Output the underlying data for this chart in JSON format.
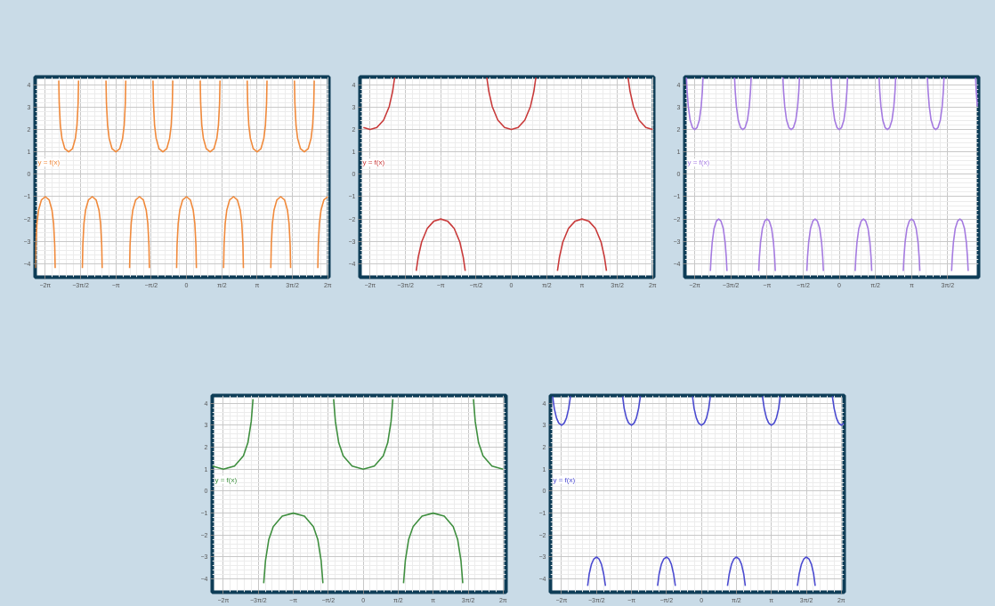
{
  "chart_data": [
    {
      "type": "line",
      "xlim": [
        -6.73,
        6.33
      ],
      "ylim": [
        -4.6,
        4.35
      ],
      "grid": true,
      "xticks": [
        {
          "value": -6.283,
          "label": "−2π"
        },
        {
          "value": -4.712,
          "label": "−3π/2"
        },
        {
          "value": -3.142,
          "label": "−π"
        },
        {
          "value": -1.571,
          "label": "−π/2"
        },
        {
          "value": 0,
          "label": "0"
        },
        {
          "value": 1.571,
          "label": "π/2"
        },
        {
          "value": 3.142,
          "label": "π"
        },
        {
          "value": 4.712,
          "label": "3π/2"
        },
        {
          "value": 6.283,
          "label": "2π"
        }
      ],
      "yticks": [
        -4,
        -3,
        -2,
        -1,
        0,
        1,
        2,
        3,
        4
      ],
      "annotations": [
        "y = f(x)"
      ],
      "series": [
        {
          "color": "#f08a3c",
          "x": [
            -6.72,
            -6.7,
            -6.65,
            -6.58,
            -6.45,
            -6.28,
            -6.11,
            -5.98,
            -5.91,
            -5.86,
            -5.84
          ],
          "values": [
            -4.19,
            -3.17,
            -2.2,
            -1.61,
            -1.14,
            -1,
            -1.14,
            -1.61,
            -2.2,
            -3.17,
            -4.19
          ]
        },
        {
          "color": "#f08a3c",
          "x": [
            -5.68,
            -5.66,
            -5.61,
            -5.54,
            -5.41,
            -5.24,
            -5.07,
            -4.94,
            -4.87,
            -4.82,
            -4.8
          ],
          "values": [
            4.19,
            3.17,
            2.2,
            1.61,
            1.14,
            1,
            1.14,
            1.61,
            2.2,
            3.17,
            4.19
          ]
        },
        {
          "color": "#f08a3c",
          "x": [
            -4.63,
            -4.61,
            -4.56,
            -4.49,
            -4.36,
            -4.19,
            -4.02,
            -3.89,
            -3.82,
            -3.77,
            -3.75
          ],
          "values": [
            -4.19,
            -3.17,
            -2.2,
            -1.61,
            -1.14,
            -1,
            -1.14,
            -1.61,
            -2.2,
            -3.17,
            -4.19
          ]
        },
        {
          "color": "#f08a3c",
          "x": [
            -3.58,
            -3.56,
            -3.51,
            -3.44,
            -3.31,
            -3.14,
            -2.97,
            -2.84,
            -2.77,
            -2.72,
            -2.7
          ],
          "values": [
            4.19,
            3.17,
            2.2,
            1.61,
            1.14,
            1,
            1.14,
            1.61,
            2.2,
            3.17,
            4.19
          ]
        },
        {
          "color": "#f08a3c",
          "x": [
            -2.53,
            -2.51,
            -2.46,
            -2.39,
            -2.26,
            -2.09,
            -1.92,
            -1.79,
            -1.72,
            -1.67,
            -1.65
          ],
          "values": [
            -4.19,
            -3.17,
            -2.2,
            -1.61,
            -1.14,
            -1,
            -1.14,
            -1.61,
            -2.2,
            -3.17,
            -4.19
          ]
        },
        {
          "color": "#f08a3c",
          "x": [
            -1.49,
            -1.47,
            -1.42,
            -1.35,
            -1.22,
            -1.05,
            -0.88,
            -0.75,
            -0.68,
            -0.63,
            -0.61
          ],
          "values": [
            4.19,
            3.17,
            2.2,
            1.61,
            1.14,
            1,
            1.14,
            1.61,
            2.2,
            3.17,
            4.19
          ]
        },
        {
          "color": "#f08a3c",
          "x": [
            -0.44,
            -0.42,
            -0.37,
            -0.3,
            -0.17,
            0,
            0.17,
            0.3,
            0.37,
            0.42,
            0.44
          ],
          "values": [
            -4.19,
            -3.17,
            -2.2,
            -1.61,
            -1.14,
            -1,
            -1.14,
            -1.61,
            -2.2,
            -3.17,
            -4.19
          ]
        },
        {
          "color": "#f08a3c",
          "x": [
            0.61,
            0.63,
            0.68,
            0.75,
            0.88,
            1.05,
            1.22,
            1.35,
            1.42,
            1.47,
            1.49
          ],
          "values": [
            4.19,
            3.17,
            2.2,
            1.61,
            1.14,
            1,
            1.14,
            1.61,
            2.2,
            3.17,
            4.19
          ]
        },
        {
          "color": "#f08a3c",
          "x": [
            1.65,
            1.67,
            1.72,
            1.79,
            1.92,
            2.09,
            2.26,
            2.39,
            2.46,
            2.51,
            2.53
          ],
          "values": [
            -4.19,
            -3.17,
            -2.2,
            -1.61,
            -1.14,
            -1,
            -1.14,
            -1.61,
            -2.2,
            -3.17,
            -4.19
          ]
        },
        {
          "color": "#f08a3c",
          "x": [
            2.7,
            2.72,
            2.77,
            2.84,
            2.97,
            3.14,
            3.31,
            3.44,
            3.51,
            3.56,
            3.58
          ],
          "values": [
            4.19,
            3.17,
            2.2,
            1.61,
            1.14,
            1,
            1.14,
            1.61,
            2.2,
            3.17,
            4.19
          ]
        },
        {
          "color": "#f08a3c",
          "x": [
            3.75,
            3.77,
            3.82,
            3.89,
            4.02,
            4.19,
            4.36,
            4.49,
            4.56,
            4.61,
            4.63
          ],
          "values": [
            -4.19,
            -3.17,
            -2.2,
            -1.61,
            -1.14,
            -1,
            -1.14,
            -1.61,
            -2.2,
            -3.17,
            -4.19
          ]
        },
        {
          "color": "#f08a3c",
          "x": [
            4.8,
            4.82,
            4.87,
            4.94,
            5.07,
            5.24,
            5.41,
            5.54,
            5.61,
            5.66,
            5.68
          ],
          "values": [
            4.19,
            3.17,
            2.2,
            1.61,
            1.14,
            1,
            1.14,
            1.61,
            2.2,
            3.17,
            4.19
          ]
        },
        {
          "color": "#f08a3c",
          "x": [
            5.84,
            5.86,
            5.91,
            5.98,
            6.11,
            6.28
          ],
          "values": [
            -4.19,
            -3.17,
            -2.2,
            -1.61,
            -1.14,
            -1
          ]
        }
      ]
    },
    {
      "type": "line",
      "xlim": [
        -6.73,
        6.33
      ],
      "ylim": [
        -4.6,
        4.35
      ],
      "grid": true,
      "xticks": [
        {
          "value": -6.283,
          "label": "−2π"
        },
        {
          "value": -4.712,
          "label": "−3π/2"
        },
        {
          "value": -3.142,
          "label": "−π"
        },
        {
          "value": -1.571,
          "label": "−π/2"
        },
        {
          "value": 0,
          "label": "0"
        },
        {
          "value": 1.571,
          "label": "π/2"
        },
        {
          "value": 3.142,
          "label": "π"
        },
        {
          "value": 4.712,
          "label": "3π/2"
        },
        {
          "value": 6.283,
          "label": "2π"
        }
      ],
      "yticks": [
        -4,
        -3,
        -2,
        -1,
        0,
        1,
        2,
        3,
        4
      ],
      "annotations": [
        "y = f(x)"
      ],
      "series": [
        {
          "color": "#c83a3a",
          "x": [
            -6.58,
            -6.28,
            -5.98,
            -5.68,
            -5.43,
            -5.28,
            -5.19
          ],
          "values": [
            2.09,
            2,
            2.09,
            2.42,
            3.03,
            3.7,
            4.32
          ]
        },
        {
          "color": "#c83a3a",
          "x": [
            -4.23,
            -4.14,
            -3.99,
            -3.74,
            -3.44,
            -3.14,
            -2.84,
            -2.54,
            -2.29,
            -2.14,
            -2.05
          ],
          "values": [
            -4.32,
            -3.7,
            -3.03,
            -2.42,
            -2.09,
            -2,
            -2.09,
            -2.42,
            -3.03,
            -3.7,
            -4.32
          ]
        },
        {
          "color": "#c83a3a",
          "x": [
            -1.09,
            -1,
            -0.85,
            -0.6,
            -0.3,
            0,
            0.3,
            0.6,
            0.85,
            1,
            1.09
          ],
          "values": [
            4.32,
            3.7,
            3.03,
            2.42,
            2.09,
            2,
            2.09,
            2.42,
            3.03,
            3.7,
            4.32
          ]
        },
        {
          "color": "#c83a3a",
          "x": [
            2.05,
            2.14,
            2.29,
            2.54,
            2.84,
            3.14,
            3.44,
            3.74,
            3.99,
            4.14,
            4.23
          ],
          "values": [
            -4.32,
            -3.7,
            -3.03,
            -2.42,
            -2.09,
            -2,
            -2.09,
            -2.42,
            -3.03,
            -3.7,
            -4.32
          ]
        },
        {
          "color": "#c83a3a",
          "x": [
            5.19,
            5.28,
            5.43,
            5.68,
            5.98,
            6.28
          ],
          "values": [
            4.32,
            3.7,
            3.03,
            2.42,
            2.09,
            2
          ]
        }
      ]
    },
    {
      "type": "line",
      "xlim": [
        -6.71,
        6.05
      ],
      "ylim": [
        -4.6,
        4.35
      ],
      "grid": true,
      "xticks": [
        {
          "value": -6.283,
          "label": "−2π"
        },
        {
          "value": -4.712,
          "label": "−3π/2"
        },
        {
          "value": -3.142,
          "label": "−π"
        },
        {
          "value": -1.571,
          "label": "−π/2"
        },
        {
          "value": 0,
          "label": "0"
        },
        {
          "value": 1.571,
          "label": "π/2"
        },
        {
          "value": 3.142,
          "label": "π"
        },
        {
          "value": 4.712,
          "label": "3π/2"
        }
      ],
      "yticks": [
        -4,
        -3,
        -2,
        -1,
        0,
        1,
        2,
        3,
        4
      ],
      "annotations": [
        "y = f(x)"
      ],
      "series": [
        {
          "color": "#a57be0",
          "x": [
            -6.64,
            -6.61,
            -6.56,
            -6.48,
            -6.38,
            -6.28,
            -6.18,
            -6.08,
            -6.0,
            -5.95,
            -5.92
          ],
          "values": [
            4.32,
            3.7,
            3.03,
            2.42,
            2.09,
            2,
            2.09,
            2.42,
            3.03,
            3.7,
            4.32
          ]
        },
        {
          "color": "#a57be0",
          "x": [
            -5.6,
            -5.57,
            -5.52,
            -5.44,
            -5.34,
            -5.24,
            -5.14,
            -5.04,
            -4.96,
            -4.91,
            -4.88
          ],
          "values": [
            -4.32,
            -3.7,
            -3.03,
            -2.42,
            -2.09,
            -2,
            -2.09,
            -2.42,
            -3.03,
            -3.7,
            -4.32
          ]
        },
        {
          "color": "#a57be0",
          "x": [
            -4.55,
            -4.52,
            -4.47,
            -4.39,
            -4.29,
            -4.19,
            -4.09,
            -3.99,
            -3.91,
            -3.86,
            -3.83
          ],
          "values": [
            4.32,
            3.7,
            3.03,
            2.42,
            2.09,
            2,
            2.09,
            2.42,
            3.03,
            3.7,
            4.32
          ]
        },
        {
          "color": "#a57be0",
          "x": [
            -3.5,
            -3.47,
            -3.42,
            -3.34,
            -3.24,
            -3.14,
            -3.04,
            -2.94,
            -2.86,
            -2.81,
            -2.78
          ],
          "values": [
            -4.32,
            -3.7,
            -3.03,
            -2.42,
            -2.09,
            -2,
            -2.09,
            -2.42,
            -3.03,
            -3.7,
            -4.32
          ]
        },
        {
          "color": "#a57be0",
          "x": [
            -2.45,
            -2.42,
            -2.37,
            -2.29,
            -2.19,
            -2.09,
            -1.99,
            -1.89,
            -1.81,
            -1.76,
            -1.73
          ],
          "values": [
            4.32,
            3.7,
            3.03,
            2.42,
            2.09,
            2,
            2.09,
            2.42,
            3.03,
            3.7,
            4.32
          ]
        },
        {
          "color": "#a57be0",
          "x": [
            -1.41,
            -1.38,
            -1.33,
            -1.25,
            -1.15,
            -1.05,
            -0.95,
            -0.85,
            -0.77,
            -0.72,
            -0.69
          ],
          "values": [
            -4.32,
            -3.7,
            -3.03,
            -2.42,
            -2.09,
            -2,
            -2.09,
            -2.42,
            -3.03,
            -3.7,
            -4.32
          ]
        },
        {
          "color": "#a57be0",
          "x": [
            -0.36,
            -0.33,
            -0.28,
            -0.2,
            -0.1,
            0,
            0.1,
            0.2,
            0.28,
            0.33,
            0.36
          ],
          "values": [
            4.32,
            3.7,
            3.03,
            2.42,
            2.09,
            2,
            2.09,
            2.42,
            3.03,
            3.7,
            4.32
          ]
        },
        {
          "color": "#a57be0",
          "x": [
            0.69,
            0.72,
            0.77,
            0.85,
            0.95,
            1.05,
            1.15,
            1.25,
            1.33,
            1.38,
            1.41
          ],
          "values": [
            -4.32,
            -3.7,
            -3.03,
            -2.42,
            -2.09,
            -2,
            -2.09,
            -2.42,
            -3.03,
            -3.7,
            -4.32
          ]
        },
        {
          "color": "#a57be0",
          "x": [
            1.73,
            1.76,
            1.81,
            1.89,
            1.99,
            2.09,
            2.19,
            2.29,
            2.37,
            2.42,
            2.45
          ],
          "values": [
            4.32,
            3.7,
            3.03,
            2.42,
            2.09,
            2,
            2.09,
            2.42,
            3.03,
            3.7,
            4.32
          ]
        },
        {
          "color": "#a57be0",
          "x": [
            2.78,
            2.81,
            2.86,
            2.94,
            3.04,
            3.14,
            3.24,
            3.34,
            3.42,
            3.47,
            3.5
          ],
          "values": [
            -4.32,
            -3.7,
            -3.03,
            -2.42,
            -2.09,
            -2,
            -2.09,
            -2.42,
            -3.03,
            -3.7,
            -4.32
          ]
        },
        {
          "color": "#a57be0",
          "x": [
            3.83,
            3.86,
            3.91,
            3.99,
            4.09,
            4.19,
            4.29,
            4.39,
            4.47,
            4.52,
            4.55
          ],
          "values": [
            4.32,
            3.7,
            3.03,
            2.42,
            2.09,
            2,
            2.09,
            2.42,
            3.03,
            3.7,
            4.32
          ]
        },
        {
          "color": "#a57be0",
          "x": [
            4.88,
            4.91,
            4.96,
            5.04,
            5.14,
            5.24,
            5.34,
            5.44,
            5.52,
            5.57,
            5.6
          ],
          "values": [
            -4.32,
            -3.7,
            -3.03,
            -2.42,
            -2.09,
            -2,
            -2.09,
            -2.42,
            -3.03,
            -3.7,
            -4.32
          ]
        },
        {
          "color": "#a57be0",
          "x": [
            5.92,
            5.95,
            6.0
          ],
          "values": [
            4.32,
            3.7,
            3.03
          ]
        }
      ]
    },
    {
      "type": "line",
      "xlim": [
        -6.78,
        6.41
      ],
      "ylim": [
        -4.6,
        4.35
      ],
      "grid": true,
      "xticks": [
        {
          "value": -6.283,
          "label": "−2π"
        },
        {
          "value": -4.712,
          "label": "−3π/2"
        },
        {
          "value": -3.142,
          "label": "−π"
        },
        {
          "value": -1.571,
          "label": "−π/2"
        },
        {
          "value": 0,
          "label": "0"
        },
        {
          "value": 1.571,
          "label": "π/2"
        },
        {
          "value": 3.142,
          "label": "π"
        },
        {
          "value": 4.712,
          "label": "3π/2"
        },
        {
          "value": 6.283,
          "label": "2π"
        }
      ],
      "yticks": [
        -4,
        -3,
        -2,
        -1,
        0,
        1,
        2,
        3,
        4
      ],
      "annotations": [
        "y = f(x)"
      ],
      "series": [
        {
          "color": "#3f8f3f",
          "x": [
            -6.78,
            -6.28,
            -5.78,
            -5.38,
            -5.18,
            -5.03,
            -4.95
          ],
          "values": [
            1.14,
            1,
            1.14,
            1.61,
            2.2,
            3.17,
            4.19
          ]
        },
        {
          "color": "#3f8f3f",
          "x": [
            -4.47,
            -4.39,
            -4.24,
            -4.04,
            -3.64,
            -3.14,
            -2.64,
            -2.24,
            -2.04,
            -1.89,
            -1.81
          ],
          "values": [
            -4.19,
            -3.17,
            -2.2,
            -1.61,
            -1.14,
            -1,
            -1.14,
            -1.61,
            -2.2,
            -3.17,
            -4.19
          ]
        },
        {
          "color": "#3f8f3f",
          "x": [
            -1.33,
            -1.25,
            -1.1,
            -0.9,
            -0.5,
            0,
            0.5,
            0.9,
            1.1,
            1.25,
            1.33
          ],
          "values": [
            4.19,
            3.17,
            2.2,
            1.61,
            1.14,
            1,
            1.14,
            1.61,
            2.2,
            3.17,
            4.19
          ]
        },
        {
          "color": "#3f8f3f",
          "x": [
            1.81,
            1.89,
            2.04,
            2.24,
            2.64,
            3.14,
            3.64,
            4.04,
            4.24,
            4.39,
            4.47
          ],
          "values": [
            -4.19,
            -3.17,
            -2.2,
            -1.61,
            -1.14,
            -1,
            -1.14,
            -1.61,
            -2.2,
            -3.17,
            -4.19
          ]
        },
        {
          "color": "#3f8f3f",
          "x": [
            4.95,
            5.03,
            5.18,
            5.38,
            5.78,
            6.28
          ],
          "values": [
            4.19,
            3.17,
            2.2,
            1.61,
            1.14,
            1
          ]
        }
      ]
    },
    {
      "type": "line",
      "xlim": [
        -6.78,
        6.41
      ],
      "ylim": [
        -4.6,
        4.35
      ],
      "grid": true,
      "xticks": [
        {
          "value": -6.283,
          "label": "−2π"
        },
        {
          "value": -4.712,
          "label": "−3π/2"
        },
        {
          "value": -3.142,
          "label": "−π"
        },
        {
          "value": -1.571,
          "label": "−π/2"
        },
        {
          "value": 0,
          "label": "0"
        },
        {
          "value": 1.571,
          "label": "π/2"
        },
        {
          "value": 3.142,
          "label": "π"
        },
        {
          "value": 4.712,
          "label": "3π/2"
        },
        {
          "value": 6.283,
          "label": "2π"
        }
      ],
      "yticks": [
        -4,
        -3,
        -2,
        -1,
        0,
        1,
        2,
        3,
        4
      ],
      "annotations": [
        "y = f(x)"
      ],
      "series": [
        {
          "color": "#4b4bd0",
          "x": [
            -6.68,
            -6.61,
            -6.51,
            -6.41,
            -6.28,
            -6.16,
            -6.06,
            -5.96,
            -5.88
          ],
          "values": [
            4.31,
            3.77,
            3.33,
            3.1,
            3,
            3.1,
            3.33,
            3.77,
            4.31
          ]
        },
        {
          "color": "#4b4bd0",
          "x": [
            -5.11,
            -5.04,
            -4.94,
            -4.84,
            -4.71,
            -4.59,
            -4.49,
            -4.39,
            -4.31
          ],
          "values": [
            -4.31,
            -3.77,
            -3.33,
            -3.1,
            -3,
            -3.1,
            -3.33,
            -3.77,
            -4.31
          ]
        },
        {
          "color": "#4b4bd0",
          "x": [
            -3.54,
            -3.47,
            -3.37,
            -3.27,
            -3.14,
            -3.02,
            -2.92,
            -2.82,
            -2.74
          ],
          "values": [
            4.31,
            3.77,
            3.33,
            3.1,
            3,
            3.1,
            3.33,
            3.77,
            4.31
          ]
        },
        {
          "color": "#4b4bd0",
          "x": [
            -1.97,
            -1.9,
            -1.8,
            -1.7,
            -1.57,
            -1.45,
            -1.35,
            -1.25,
            -1.17
          ],
          "values": [
            -4.31,
            -3.77,
            -3.33,
            -3.1,
            -3,
            -3.1,
            -3.33,
            -3.77,
            -4.31
          ]
        },
        {
          "color": "#4b4bd0",
          "x": [
            -0.4,
            -0.33,
            -0.23,
            -0.13,
            0,
            0.13,
            0.23,
            0.33,
            0.4
          ],
          "values": [
            4.31,
            3.77,
            3.33,
            3.1,
            3,
            3.1,
            3.33,
            3.77,
            4.31
          ]
        },
        {
          "color": "#4b4bd0",
          "x": [
            1.17,
            1.25,
            1.35,
            1.45,
            1.57,
            1.7,
            1.8,
            1.9,
            1.97
          ],
          "values": [
            -4.31,
            -3.77,
            -3.33,
            -3.1,
            -3,
            -3.1,
            -3.33,
            -3.77,
            -4.31
          ]
        },
        {
          "color": "#4b4bd0",
          "x": [
            2.74,
            2.82,
            2.92,
            3.02,
            3.14,
            3.27,
            3.37,
            3.47,
            3.54
          ],
          "values": [
            4.31,
            3.77,
            3.33,
            3.1,
            3,
            3.1,
            3.33,
            3.77,
            4.31
          ]
        },
        {
          "color": "#4b4bd0",
          "x": [
            4.31,
            4.39,
            4.49,
            4.59,
            4.71,
            4.84,
            4.94,
            5.04,
            5.11
          ],
          "values": [
            -4.31,
            -3.77,
            -3.33,
            -3.1,
            -3,
            -3.1,
            -3.33,
            -3.77,
            -4.31
          ]
        },
        {
          "color": "#4b4bd0",
          "x": [
            5.88,
            5.96,
            6.06,
            6.16,
            6.28,
            6.41
          ],
          "values": [
            4.31,
            3.77,
            3.33,
            3.1,
            3,
            3.1
          ]
        }
      ]
    }
  ]
}
